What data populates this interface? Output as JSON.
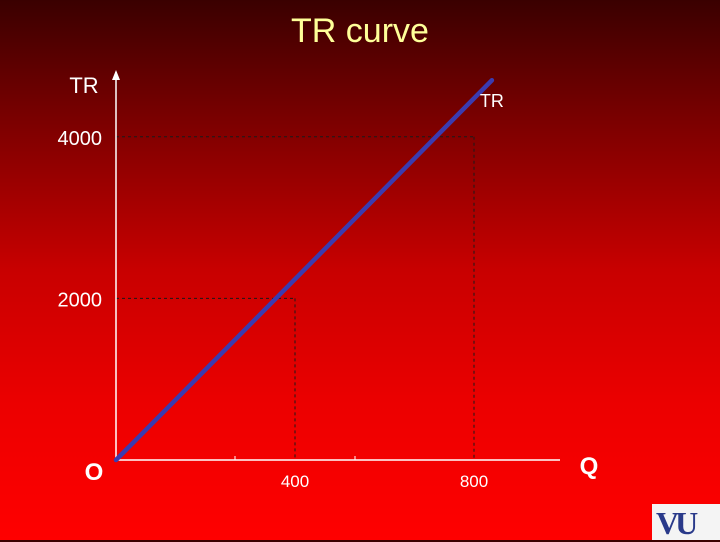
{
  "slide": {
    "title": "TR curve"
  },
  "chart_data": {
    "type": "line",
    "title": "TR curve",
    "xlabel": "Q",
    "ylabel": "TR",
    "origin_label": "O",
    "x_ticks": [
      400,
      800
    ],
    "y_ticks": [
      2000,
      4000
    ],
    "xlim": [
      0,
      1050
    ],
    "ylim": [
      0,
      4900
    ],
    "series": [
      {
        "name": "TR",
        "x": [
          0,
          840
        ],
        "y": [
          0,
          4700
        ]
      }
    ],
    "guides": [
      {
        "x": 400,
        "y": 2000
      },
      {
        "x": 800,
        "y": 4000
      }
    ],
    "line_color": "#3b3bb0",
    "axis_color": "#ffffff",
    "guide_color": "#1a1a1a"
  },
  "logo": {
    "text": "VU"
  }
}
